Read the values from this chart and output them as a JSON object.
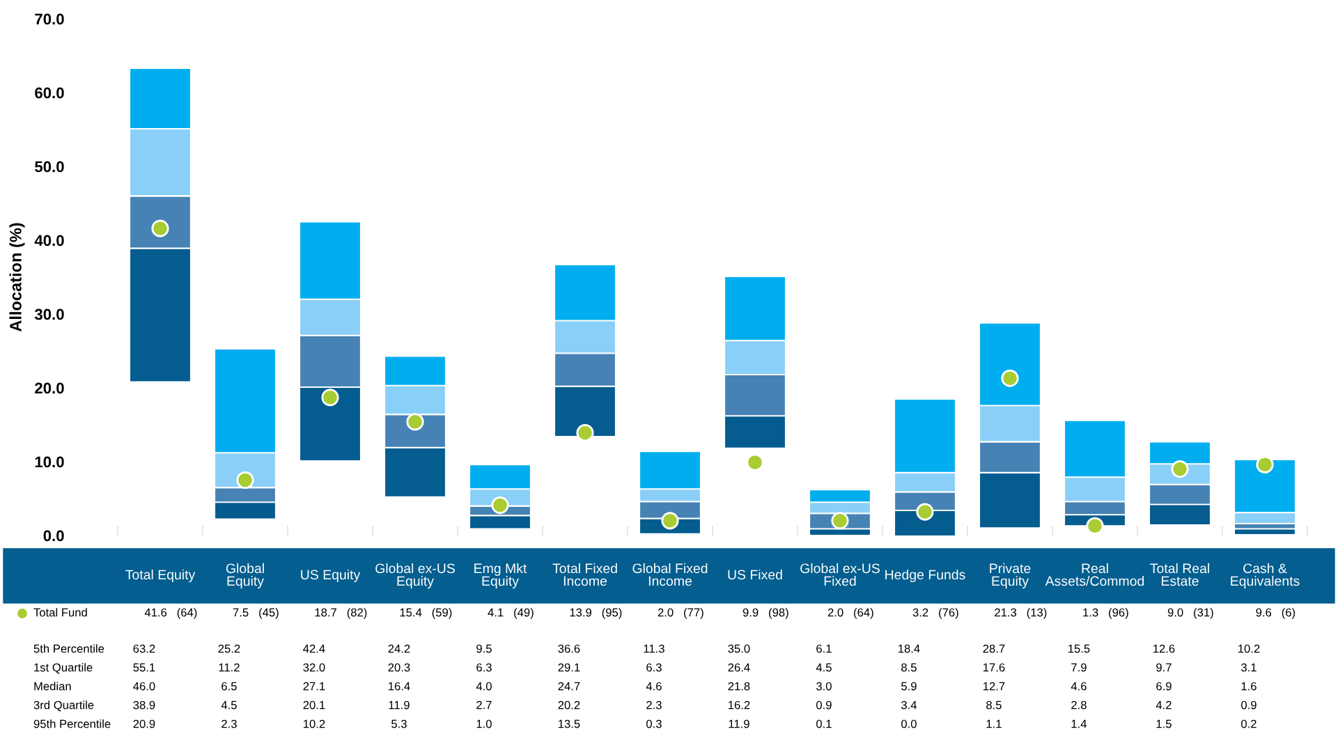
{
  "chart_data": {
    "type": "box",
    "ylabel": "Allocation (%)",
    "ylim": [
      0,
      70
    ],
    "yticks": [
      {
        "value": 0,
        "label": "0.0"
      },
      {
        "value": 10,
        "label": "10.0"
      },
      {
        "value": 20,
        "label": "20.0"
      },
      {
        "value": 30,
        "label": "30.0"
      },
      {
        "value": 40,
        "label": "40.0"
      },
      {
        "value": 50,
        "label": "50.0"
      },
      {
        "value": 60,
        "label": "60.0"
      },
      {
        "value": 70,
        "label": "70.0"
      }
    ],
    "categories": [
      "Total Equity",
      "Global Equity",
      "US Equity",
      "Global ex-US Equity",
      "Emg Mkt Equity",
      "Total Fixed Income",
      "Global Fixed Income",
      "US Fixed",
      "Global ex-US Fixed",
      "Hedge Funds",
      "Private Equity",
      "Real Assets/Commod",
      "Total Real Estate",
      "Cash & Equivalents"
    ],
    "series": [
      {
        "colors": [
          [
            "#045c8f",
            "#4682b4",
            "#89cff8",
            "#00aeef"
          ],
          [
            "#045c8f",
            "#4682b4",
            "#89cff8",
            "#00aeef"
          ],
          [
            "#045c8f",
            "#4682b4",
            "#89cff8",
            "#00aeef"
          ],
          [
            "#045c8f",
            "#4682b4",
            "#89cff8",
            "#00aeef"
          ],
          [
            "#045c8f",
            "#4682b4",
            "#89cff8",
            "#00aeef"
          ],
          [
            "#045c8f",
            "#4682b4",
            "#89cff8",
            "#00aeef"
          ],
          [
            "#045c8f",
            "#4682b4",
            "#89cff8",
            "#00aeef"
          ],
          [
            "#045c8f",
            "#4682b4",
            "#89cff8",
            "#00aeef"
          ],
          [
            "#045c8f",
            "#4682b4",
            "#89cff8",
            "#00aeef"
          ],
          [
            "#045c8f",
            "#4682b4",
            "#89cff8",
            "#00aeef"
          ],
          [
            "#045c8f",
            "#4682b4",
            "#89cff8",
            "#00aeef"
          ],
          [
            "#045c8f",
            "#4682b4",
            "#89cff8",
            "#00aeef"
          ],
          [
            "#045c8f",
            "#4682b4",
            "#89cff8",
            "#00aeef"
          ],
          [
            "#045c8f",
            "#4682b4",
            "#89cff8",
            "#00aeef"
          ]
        ],
        "boxes": [
          {
            "low": 20.9,
            "q1": 38.9,
            "median": 46.0,
            "q3": 55.1,
            "high": 63.2
          },
          {
            "low": 2.3,
            "q1": 4.5,
            "median": 6.5,
            "q3": 11.2,
            "high": 25.2
          },
          {
            "low": 10.2,
            "q1": 20.1,
            "median": 27.1,
            "q3": 32.0,
            "high": 42.4
          },
          {
            "low": 5.3,
            "q1": 11.9,
            "median": 16.4,
            "q3": 20.3,
            "high": 24.2
          },
          {
            "low": 1.0,
            "q1": 2.7,
            "median": 4.0,
            "q3": 6.3,
            "high": 9.5
          },
          {
            "low": 13.5,
            "q1": 20.2,
            "median": 24.7,
            "q3": 29.1,
            "high": 36.6
          },
          {
            "low": 0.3,
            "q1": 2.3,
            "median": 4.6,
            "q3": 6.3,
            "high": 11.3
          },
          {
            "low": 11.9,
            "q1": 16.2,
            "median": 21.8,
            "q3": 26.4,
            "high": 35.0
          },
          {
            "low": 0.1,
            "q1": 0.9,
            "median": 3.0,
            "q3": 4.5,
            "high": 6.1
          },
          {
            "low": 0.0,
            "q1": 3.4,
            "median": 5.9,
            "q3": 8.5,
            "high": 18.4
          },
          {
            "low": 1.1,
            "q1": 8.5,
            "median": 12.7,
            "q3": 17.6,
            "high": 28.7
          },
          {
            "low": 1.4,
            "q1": 2.8,
            "median": 4.6,
            "q3": 7.9,
            "high": 15.5
          },
          {
            "low": 1.5,
            "q1": 4.2,
            "median": 6.9,
            "q3": 9.7,
            "high": 12.6
          },
          {
            "low": 0.2,
            "q1": 0.9,
            "median": 1.6,
            "q3": 3.1,
            "high": 10.2
          }
        ],
        "value_labels": [
          [
            "63.2",
            "55.1",
            "46.0",
            "38.9",
            "20.9"
          ],
          [
            "25.2",
            "11.2",
            "6.5",
            "4.5",
            "2.3"
          ],
          [
            "42.4",
            "32.0",
            "27.1",
            "20.1",
            "10.2"
          ],
          [
            "24.2",
            "20.3",
            "16.4",
            "11.9",
            "5.3"
          ],
          [
            "9.5",
            "6.3",
            "4.0",
            "2.7",
            "1.0"
          ],
          [
            "36.6",
            "29.1",
            "24.7",
            "20.2",
            "13.5"
          ],
          [
            "11.3",
            "6.3",
            "4.6",
            "2.3",
            "0.3"
          ],
          [
            "35.0",
            "26.4",
            "21.8",
            "16.2",
            "11.9"
          ],
          [
            "6.1",
            "4.5",
            "3.0",
            "0.9",
            "0.1"
          ],
          [
            "18.4",
            "8.5",
            "5.9",
            "3.4",
            "0.0"
          ],
          [
            "28.7",
            "17.6",
            "12.7",
            "8.5",
            "1.1"
          ],
          [
            "15.5",
            "7.9",
            "4.6",
            "2.8",
            "1.4"
          ],
          [
            "12.6",
            "9.7",
            "6.9",
            "4.2",
            "1.5"
          ],
          [
            "10.2",
            "3.1",
            "1.6",
            "0.9",
            "0.2"
          ]
        ]
      },
      {
        "type": "scatter",
        "name": "Total Fund",
        "color": "#a8cc32",
        "marker": "circle",
        "values": [
          41.6,
          7.5,
          18.7,
          15.4,
          4.1,
          13.9,
          2.0,
          9.9,
          2.0,
          3.2,
          21.3,
          1.3,
          9.0,
          9.6
        ],
        "value_labels": [
          "41.6   (64)",
          "7.5   (45)",
          "18.7   (82)",
          "15.4   (59)",
          "4.1   (49)",
          "13.9   (95)",
          "2.0   (77)",
          "9.9   (98)",
          "2.0   (64)",
          "3.2   (76)",
          "21.3   (13)",
          "1.3   (96)",
          "9.0   (31)",
          "9.6   (6)"
        ]
      }
    ],
    "annotations": [
      "5th Percentile",
      "1st Quartile",
      "Median",
      "3rd Quartile",
      "95th Percentile"
    ],
    "grid": false,
    "legend": "bottom left"
  }
}
